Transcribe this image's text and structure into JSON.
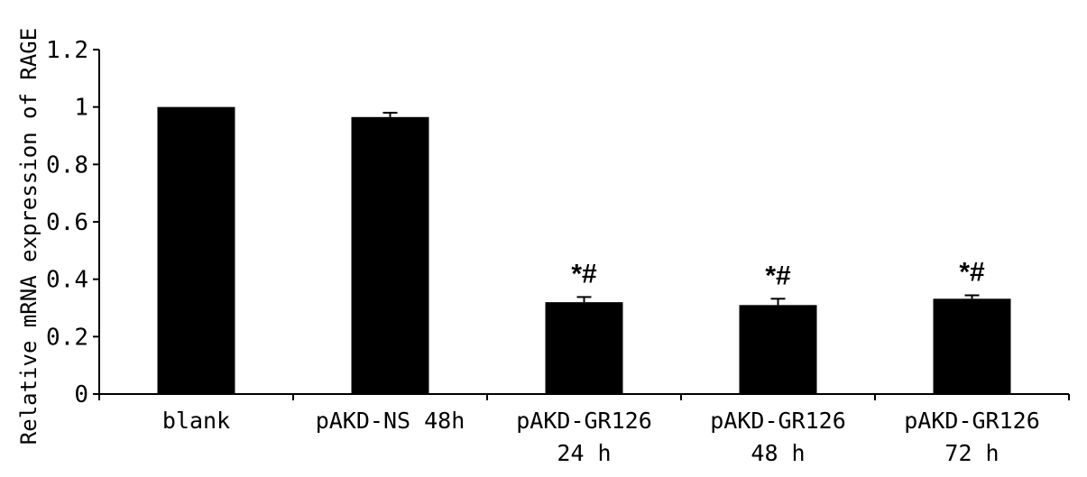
{
  "chart_data": {
    "type": "bar",
    "title": "",
    "xlabel": "",
    "ylabel": "Relative mRNA expression of RAGE",
    "ylim": [
      0,
      1.2
    ],
    "yticks": [
      "0",
      "0.2",
      "0.4",
      "0.6",
      "0.8",
      "1",
      "1.2"
    ],
    "categories": [
      [
        "blank"
      ],
      [
        "pAKD-NS 48h"
      ],
      [
        "pAKD-GR126",
        "24 h"
      ],
      [
        "pAKD-GR126",
        "48 h"
      ],
      [
        "pAKD-GR126",
        "72 h"
      ]
    ],
    "values": [
      1.0,
      0.965,
      0.32,
      0.31,
      0.332
    ],
    "errors": [
      0.0,
      0.015,
      0.018,
      0.022,
      0.012
    ],
    "annotations": [
      "",
      "",
      "*#",
      "*#",
      "*#"
    ],
    "bar_color": "#000000",
    "grid": false,
    "legend": "none"
  }
}
